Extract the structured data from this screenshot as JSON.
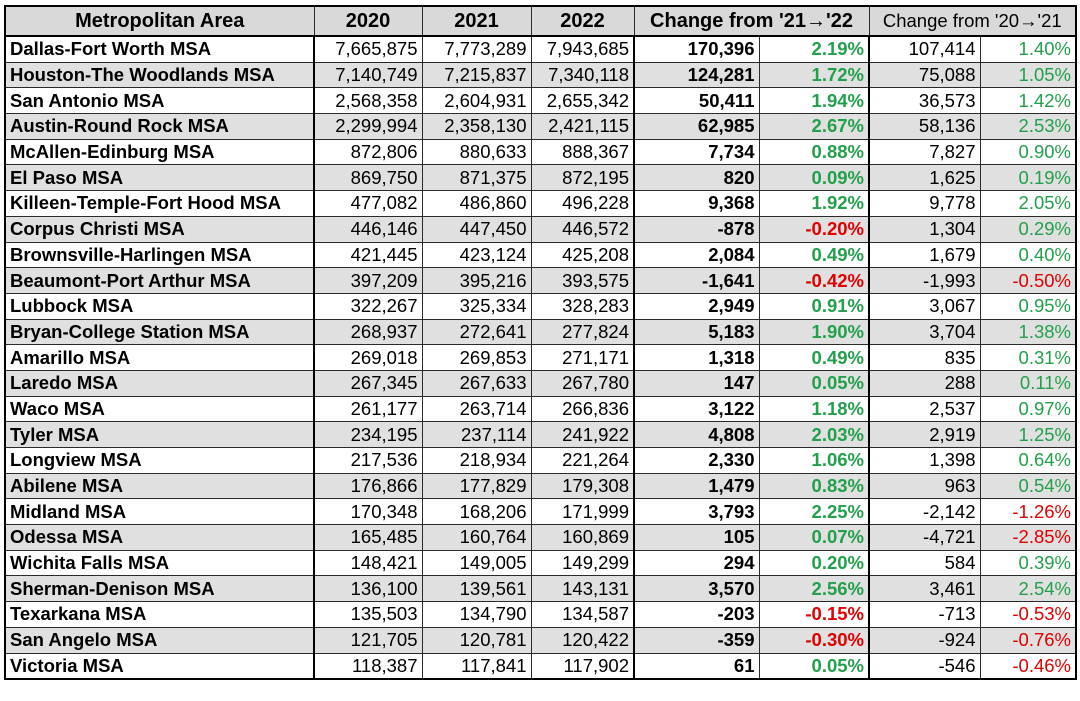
{
  "header": {
    "area": "Metropolitan Area",
    "y2020": "2020",
    "y2021": "2021",
    "y2022": "2022",
    "change_21_22": "Change from '21→'22",
    "change_20_21": "Change from '20→'21"
  },
  "colors": {
    "positive": "#22a04b",
    "negative": "#e00000",
    "stripe": "#e0e0e0",
    "header_bg": "#d9d9d9"
  },
  "rows": [
    [
      "Dallas-Fort Worth MSA",
      "7,665,875",
      "7,773,289",
      "7,943,685",
      "170,396",
      "2.19%",
      "107,414",
      "1.40%"
    ],
    [
      "Houston-The Woodlands MSA",
      "7,140,749",
      "7,215,837",
      "7,340,118",
      "124,281",
      "1.72%",
      "75,088",
      "1.05%"
    ],
    [
      "San Antonio MSA",
      "2,568,358",
      "2,604,931",
      "2,655,342",
      "50,411",
      "1.94%",
      "36,573",
      "1.42%"
    ],
    [
      "Austin-Round Rock MSA",
      "2,299,994",
      "2,358,130",
      "2,421,115",
      "62,985",
      "2.67%",
      "58,136",
      "2.53%"
    ],
    [
      "McAllen-Edinburg MSA",
      "872,806",
      "880,633",
      "888,367",
      "7,734",
      "0.88%",
      "7,827",
      "0.90%"
    ],
    [
      "El Paso MSA",
      "869,750",
      "871,375",
      "872,195",
      "820",
      "0.09%",
      "1,625",
      "0.19%"
    ],
    [
      "Killeen-Temple-Fort Hood MSA",
      "477,082",
      "486,860",
      "496,228",
      "9,368",
      "1.92%",
      "9,778",
      "2.05%"
    ],
    [
      "Corpus Christi MSA",
      "446,146",
      "447,450",
      "446,572",
      "-878",
      "-0.20%",
      "1,304",
      "0.29%"
    ],
    [
      "Brownsville-Harlingen MSA",
      "421,445",
      "423,124",
      "425,208",
      "2,084",
      "0.49%",
      "1,679",
      "0.40%"
    ],
    [
      "Beaumont-Port Arthur MSA",
      "397,209",
      "395,216",
      "393,575",
      "-1,641",
      "-0.42%",
      "-1,993",
      "-0.50%"
    ],
    [
      "Lubbock MSA",
      "322,267",
      "325,334",
      "328,283",
      "2,949",
      "0.91%",
      "3,067",
      "0.95%"
    ],
    [
      "Bryan-College Station MSA",
      "268,937",
      "272,641",
      "277,824",
      "5,183",
      "1.90%",
      "3,704",
      "1.38%"
    ],
    [
      "Amarillo MSA",
      "269,018",
      "269,853",
      "271,171",
      "1,318",
      "0.49%",
      "835",
      "0.31%"
    ],
    [
      "Laredo MSA",
      "267,345",
      "267,633",
      "267,780",
      "147",
      "0.05%",
      "288",
      "0.11%"
    ],
    [
      "Waco MSA",
      "261,177",
      "263,714",
      "266,836",
      "3,122",
      "1.18%",
      "2,537",
      "0.97%"
    ],
    [
      "Tyler MSA",
      "234,195",
      "237,114",
      "241,922",
      "4,808",
      "2.03%",
      "2,919",
      "1.25%"
    ],
    [
      "Longview MSA",
      "217,536",
      "218,934",
      "221,264",
      "2,330",
      "1.06%",
      "1,398",
      "0.64%"
    ],
    [
      "Abilene MSA",
      "176,866",
      "177,829",
      "179,308",
      "1,479",
      "0.83%",
      "963",
      "0.54%"
    ],
    [
      "Midland MSA",
      "170,348",
      "168,206",
      "171,999",
      "3,793",
      "2.25%",
      "-2,142",
      "-1.26%"
    ],
    [
      "Odessa MSA",
      "165,485",
      "160,764",
      "160,869",
      "105",
      "0.07%",
      "-4,721",
      "-2.85%"
    ],
    [
      "Wichita Falls MSA",
      "148,421",
      "149,005",
      "149,299",
      "294",
      "0.20%",
      "584",
      "0.39%"
    ],
    [
      "Sherman-Denison MSA",
      "136,100",
      "139,561",
      "143,131",
      "3,570",
      "2.56%",
      "3,461",
      "2.54%"
    ],
    [
      "Texarkana MSA",
      "135,503",
      "134,790",
      "134,587",
      "-203",
      "-0.15%",
      "-713",
      "-0.53%"
    ],
    [
      "San Angelo MSA",
      "121,705",
      "120,781",
      "120,422",
      "-359",
      "-0.30%",
      "-924",
      "-0.76%"
    ],
    [
      "Victoria MSA",
      "118,387",
      "117,841",
      "117,902",
      "61",
      "0.05%",
      "-546",
      "-0.46%"
    ]
  ]
}
